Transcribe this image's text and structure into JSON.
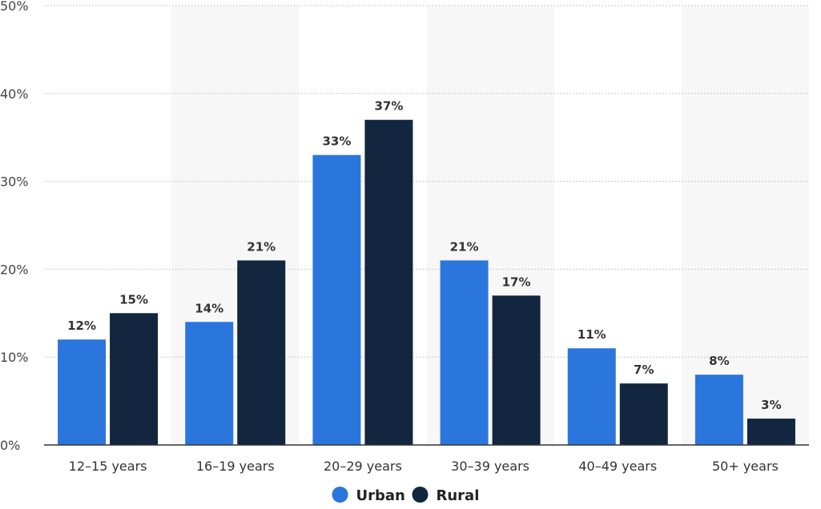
{
  "chart_data": {
    "type": "bar",
    "categories": [
      "12-15 years",
      "16-19 years",
      "20-29 years",
      "30-39 years",
      "40-49 years",
      "50+ years"
    ],
    "series": [
      {
        "name": "Urban",
        "values": [
          12,
          14,
          33,
          21,
          11,
          8
        ],
        "color": "#2a76dd"
      },
      {
        "name": "Rural",
        "values": [
          15,
          21,
          37,
          17,
          7,
          3
        ],
        "color": "#12263f"
      }
    ],
    "ylim": [
      0,
      50
    ],
    "yticks": [
      0,
      10,
      20,
      30,
      40,
      50
    ],
    "ytick_labels": [
      "0%",
      "10%",
      "20%",
      "30%",
      "40%",
      "50%"
    ],
    "value_suffix": "%",
    "grid": true,
    "legend_position": "bottom-center",
    "alternating_column_shading": true,
    "shade_color": "#f7f7f7"
  }
}
